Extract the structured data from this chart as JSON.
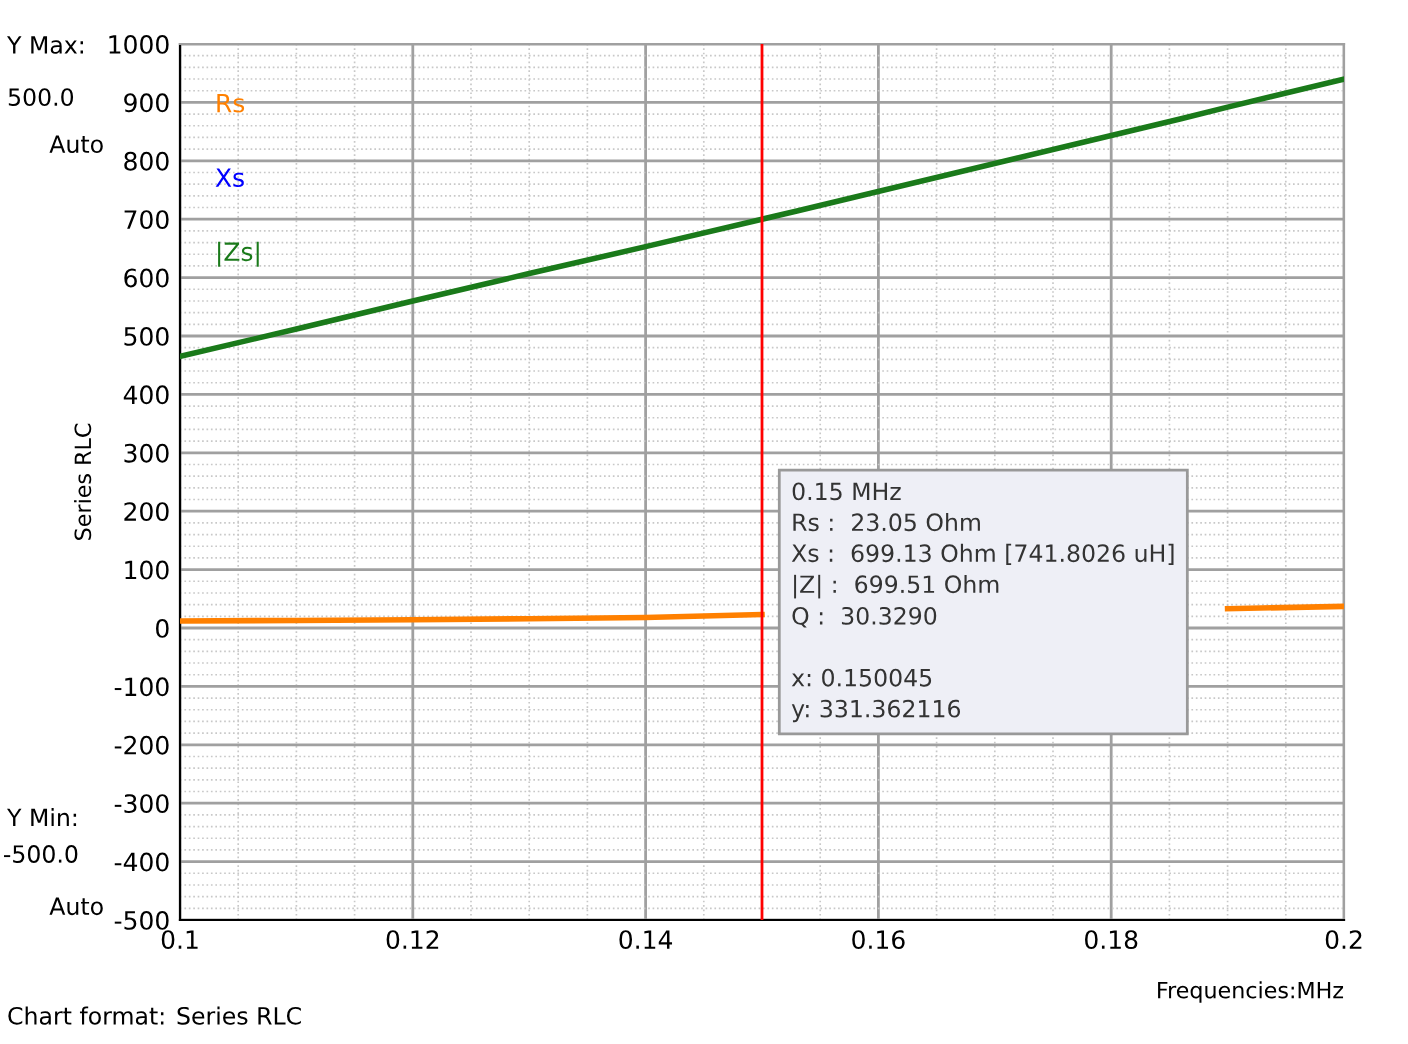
{
  "chart_data": {
    "type": "line",
    "xlabel": "Frequencies:MHz",
    "ylabel": "Series RLC",
    "x": [
      0.1,
      0.11,
      0.12,
      0.13,
      0.14,
      0.15,
      0.153,
      0.186,
      0.19,
      0.2
    ],
    "series": [
      {
        "name": "Rs",
        "color": "#ff8000",
        "values": [
          12,
          13,
          14,
          16,
          18,
          23,
          null,
          null,
          33,
          37
        ]
      },
      {
        "name": "Xs",
        "color": "#0000ff",
        "values": [
          null,
          null,
          null,
          null,
          null,
          null,
          null,
          null,
          null,
          null
        ]
      },
      {
        "name": "|Zs|",
        "color": "#1a7a1a",
        "values": [
          465,
          512,
          560,
          607,
          653,
          700,
          714,
          872,
          892,
          940
        ]
      }
    ],
    "xlim": [
      0.1,
      0.2
    ],
    "xticks": [
      0.1,
      0.12,
      0.14,
      0.16,
      0.18,
      0.2
    ],
    "ylim": [
      -500,
      1000
    ],
    "yticks": [
      -500,
      -400,
      -300,
      -200,
      -100,
      0,
      100,
      200,
      300,
      400,
      500,
      600,
      700,
      800,
      900,
      1000
    ],
    "grid": true,
    "legend": "top left",
    "marker": "none",
    "line_style": "solid",
    "ref_lines": [
      {
        "axis": "x",
        "value": 0.15,
        "color": "#ff0000"
      }
    ],
    "annotations": [
      "0.15 MHz\nRs :  23.05 Ohm\nXs :  699.13 Ohm [741.8026 uH]\n|Z| :  699.51 Ohm\nQ :  30.3290\n\nx: 0.150045\ny: 331.362116",
      "Y Max:",
      "500.0",
      "Auto",
      "Y Min:",
      "-500.0",
      "Auto",
      "Chart format:",
      "Series RLC"
    ]
  }
}
